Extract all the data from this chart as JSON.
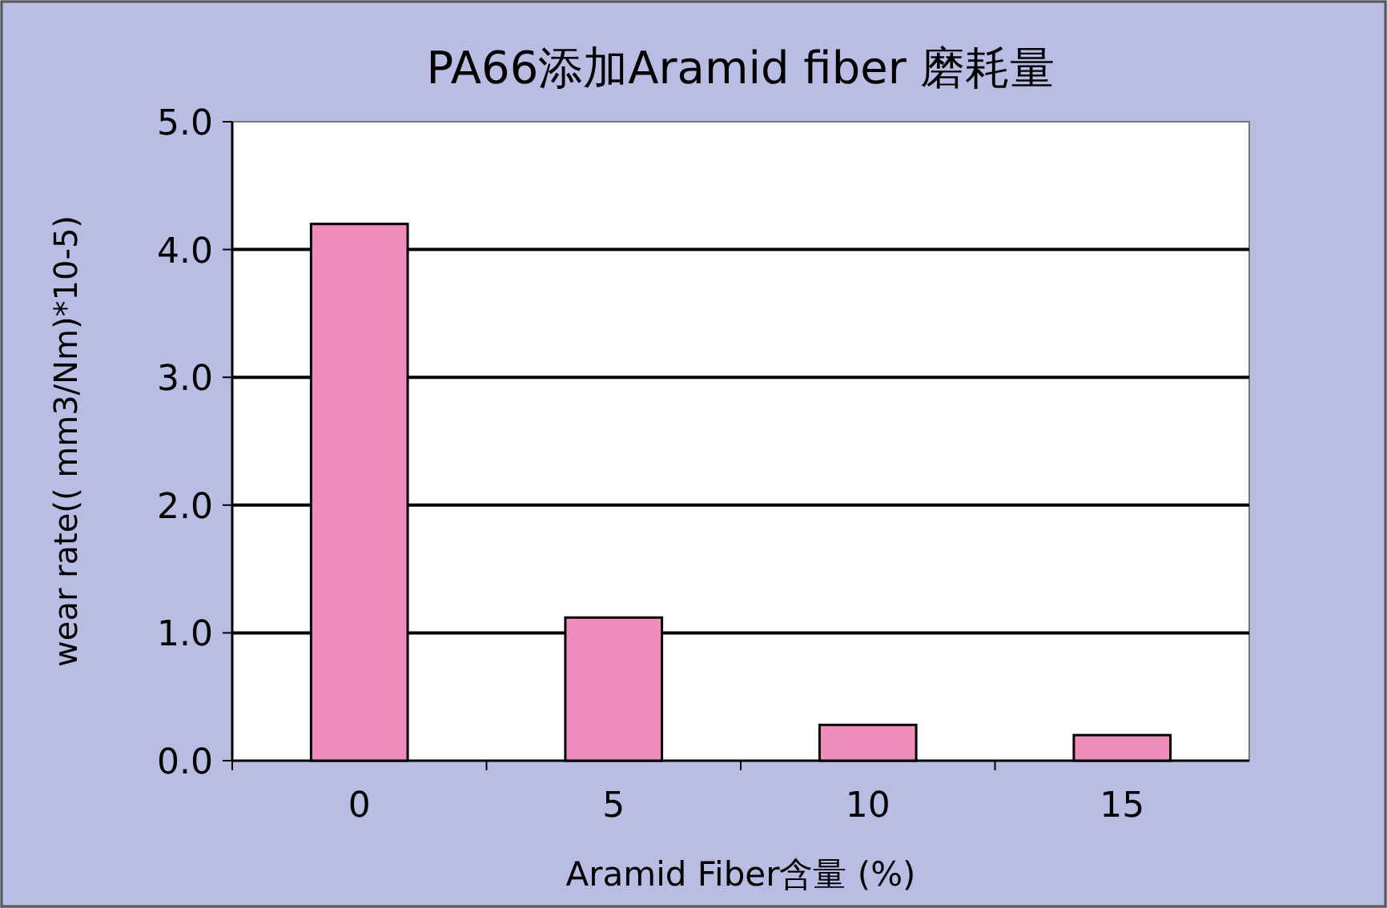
{
  "chart_data": {
    "type": "bar",
    "title": "PA66添加Aramid fiber 磨耗量",
    "xlabel": "Aramid Fiber含量 (%)",
    "ylabel": "wear rate(( mm3/Nm)*10-5)",
    "categories": [
      "0",
      "5",
      "10",
      "15"
    ],
    "values": [
      4.2,
      1.12,
      0.28,
      0.2
    ],
    "color": "#f08cbe",
    "ylim": [
      0,
      5
    ],
    "yticks": [
      {
        "value": 0,
        "label": "0.0"
      },
      {
        "value": 1,
        "label": "1.0"
      },
      {
        "value": 2,
        "label": "2.0"
      },
      {
        "value": 3,
        "label": "3.0"
      },
      {
        "value": 4,
        "label": "4.0"
      },
      {
        "value": 5,
        "label": "5.0"
      }
    ],
    "grid": "y"
  }
}
